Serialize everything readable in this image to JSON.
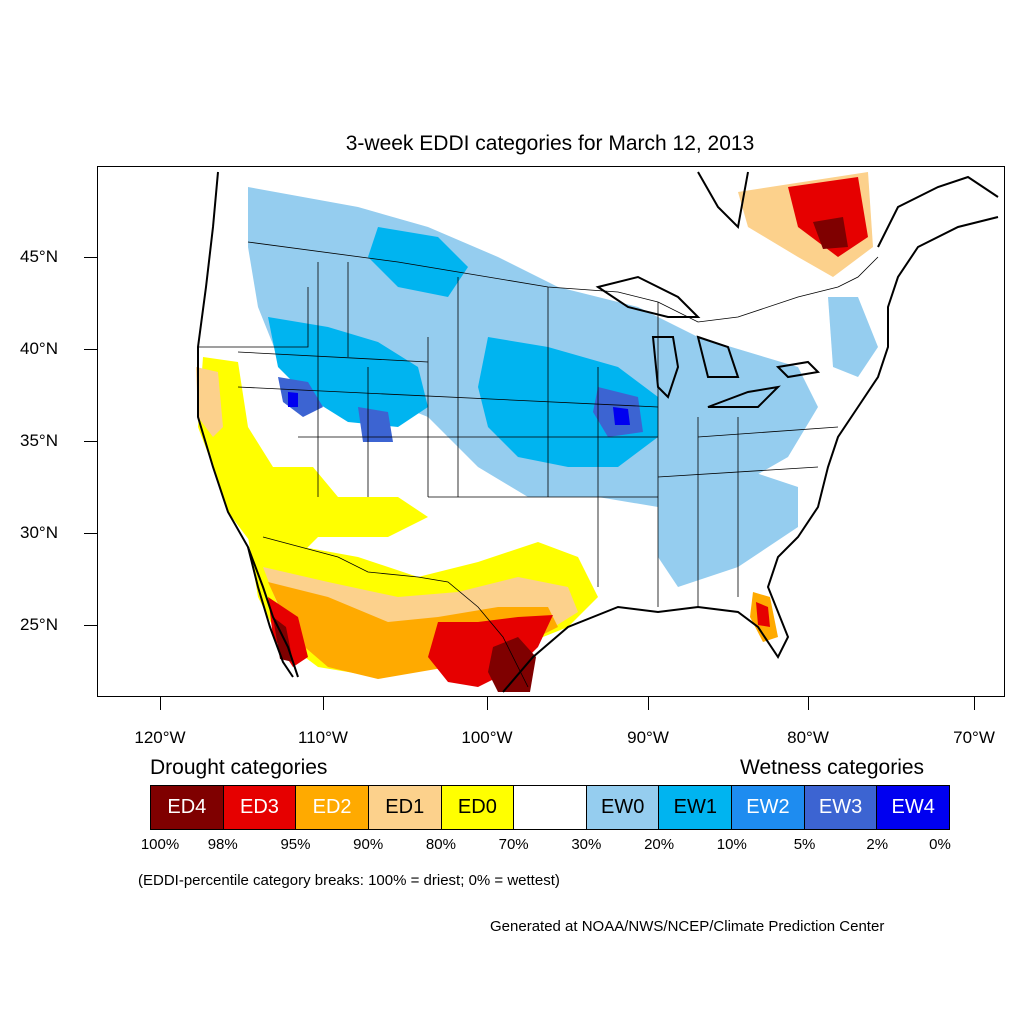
{
  "title": "3-week EDDI categories for March 12, 2013",
  "map": {
    "latitude_labels": [
      "45°N",
      "40°N",
      "35°N",
      "30°N",
      "25°N"
    ],
    "longitude_labels": [
      "120°W",
      "110°W",
      "100°W",
      "90°W",
      "80°W",
      "70°W"
    ],
    "palette": {
      "ED4": "#7f0000",
      "ED3": "#e60000",
      "ED2": "#ffaa00",
      "ED1": "#fcd18c",
      "ED0": "#ffff00",
      "neutral": "#ffffff",
      "EW0": "#95cdef",
      "EW1": "#00b4f0",
      "EW2": "#1e8cf0",
      "EW3": "#3c64d2",
      "EW4": "#0000f0"
    }
  },
  "legend": {
    "drought_heading": "Drought categories",
    "wetness_heading": "Wetness categories",
    "categories": [
      {
        "label": "ED4",
        "color": "#7f0000",
        "text_color": "#ffffff"
      },
      {
        "label": "ED3",
        "color": "#e60000",
        "text_color": "#ffffff"
      },
      {
        "label": "ED2",
        "color": "#ffaa00",
        "text_color": "#ffffff"
      },
      {
        "label": "ED1",
        "color": "#fcd18c",
        "text_color": "#000000"
      },
      {
        "label": "ED0",
        "color": "#ffff00",
        "text_color": "#000000"
      },
      {
        "label": "",
        "color": "#ffffff",
        "text_color": "#000000"
      },
      {
        "label": "EW0",
        "color": "#95cdef",
        "text_color": "#000000"
      },
      {
        "label": "EW1",
        "color": "#00b4f0",
        "text_color": "#000000"
      },
      {
        "label": "EW2",
        "color": "#1e8cf0",
        "text_color": "#ffffff"
      },
      {
        "label": "EW3",
        "color": "#3c64d2",
        "text_color": "#ffffff"
      },
      {
        "label": "EW4",
        "color": "#0000f0",
        "text_color": "#ffffff"
      }
    ],
    "breaks": [
      "100%",
      "98%",
      "95%",
      "90%",
      "80%",
      "70%",
      "30%",
      "20%",
      "10%",
      "5%",
      "2%",
      "0%"
    ]
  },
  "note": "(EDDI-percentile category breaks: 100% = driest; 0% = wettest)",
  "credit": "Generated at NOAA/NWS/NCEP/Climate Prediction Center"
}
